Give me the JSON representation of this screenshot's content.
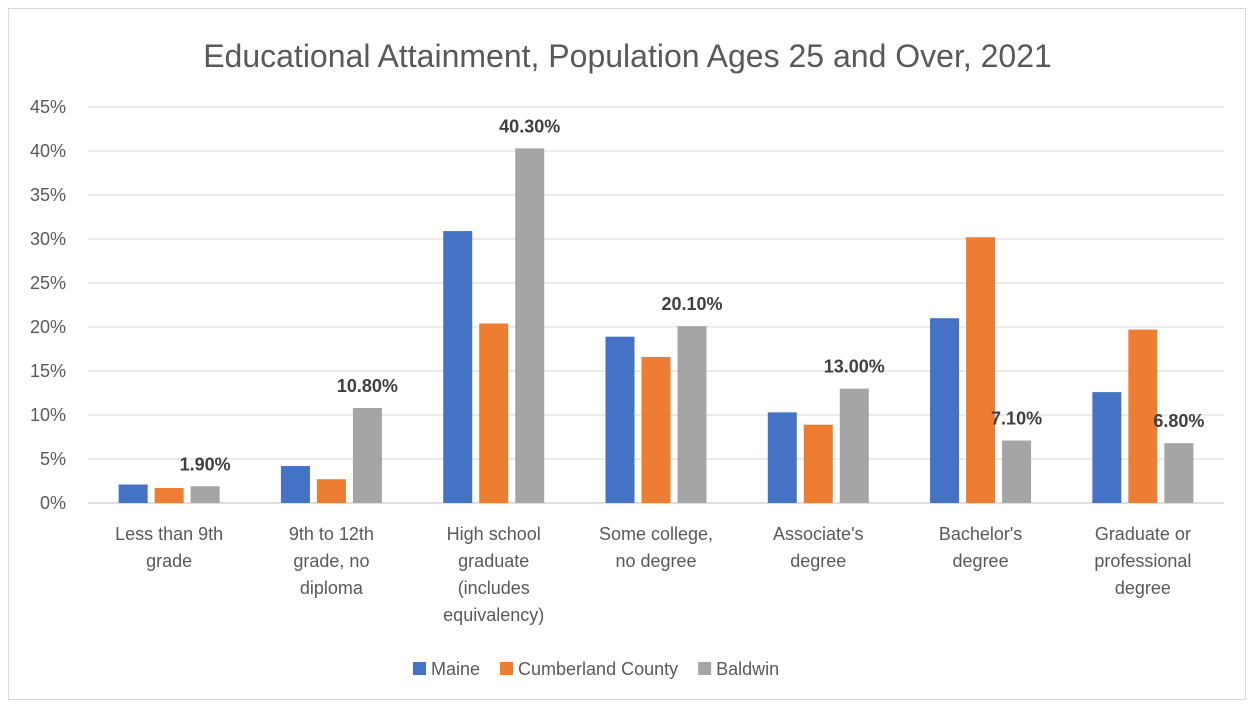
{
  "chart_data": {
    "type": "bar",
    "title": "Educational Attainment, Population Ages 25 and Over, 2021",
    "xlabel": "",
    "ylabel": "",
    "ylim": [
      0,
      45
    ],
    "yticks": [
      0,
      5,
      10,
      15,
      20,
      25,
      30,
      35,
      40,
      45
    ],
    "ytick_labels": [
      "0%",
      "5%",
      "10%",
      "15%",
      "20%",
      "25%",
      "30%",
      "35%",
      "40%",
      "45%"
    ],
    "grid": true,
    "legend_position": "bottom",
    "categories": [
      [
        "Less than 9th",
        "grade"
      ],
      [
        "9th to 12th",
        "grade, no",
        "diploma"
      ],
      [
        "High school",
        "graduate",
        "(includes",
        "equivalency)"
      ],
      [
        "Some college,",
        "no degree"
      ],
      [
        "Associate's",
        "degree"
      ],
      [
        "Bachelor's",
        "degree"
      ],
      [
        "Graduate or",
        "professional",
        "degree"
      ]
    ],
    "series": [
      {
        "name": "Maine",
        "color": "#4472c4",
        "values": [
          2.1,
          4.2,
          30.9,
          18.9,
          10.3,
          21.0,
          12.6
        ]
      },
      {
        "name": "Cumberland County",
        "color": "#ed7d31",
        "values": [
          1.7,
          2.7,
          20.4,
          16.6,
          8.9,
          30.2,
          19.7
        ]
      },
      {
        "name": "Baldwin",
        "color": "#a5a5a5",
        "values": [
          1.9,
          10.8,
          40.3,
          20.1,
          13.0,
          7.1,
          6.8
        ],
        "data_labels": [
          "1.90%",
          "10.80%",
          "40.30%",
          "20.10%",
          "13.00%",
          "7.10%",
          "6.80%"
        ]
      }
    ]
  }
}
